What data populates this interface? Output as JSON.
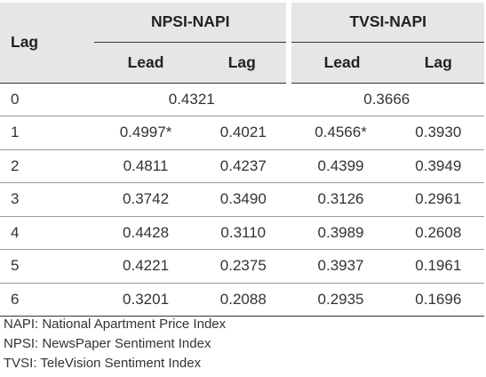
{
  "table": {
    "header": {
      "lag": "Lag",
      "groups": [
        {
          "title": "NPSI-NAPI",
          "sub": [
            "Lead",
            "Lag"
          ]
        },
        {
          "title": "TVSI-NAPI",
          "sub": [
            "Lead",
            "Lag"
          ]
        }
      ]
    },
    "row0": {
      "lag": "0",
      "npsi": "0.4321",
      "tvsi": "0.3666"
    },
    "rows": [
      {
        "lag": "1",
        "cells": [
          "0.4997*",
          "0.4021",
          "0.4566*",
          "0.3930"
        ]
      },
      {
        "lag": "2",
        "cells": [
          "0.4811",
          "0.4237",
          "0.4399",
          "0.3949"
        ]
      },
      {
        "lag": "3",
        "cells": [
          "0.3742",
          "0.3490",
          "0.3126",
          "0.2961"
        ]
      },
      {
        "lag": "4",
        "cells": [
          "0.4428",
          "0.3110",
          "0.3989",
          "0.2608"
        ]
      },
      {
        "lag": "5",
        "cells": [
          "0.4221",
          "0.2375",
          "0.3937",
          "0.1961"
        ]
      },
      {
        "lag": "6",
        "cells": [
          "0.3201",
          "0.2088",
          "0.2935",
          "0.1696"
        ]
      }
    ]
  },
  "notes": [
    "NAPI: National Apartment Price Index",
    "NPSI: NewsPaper Sentiment Index",
    "TVSI: TeleVision Sentiment Index"
  ]
}
